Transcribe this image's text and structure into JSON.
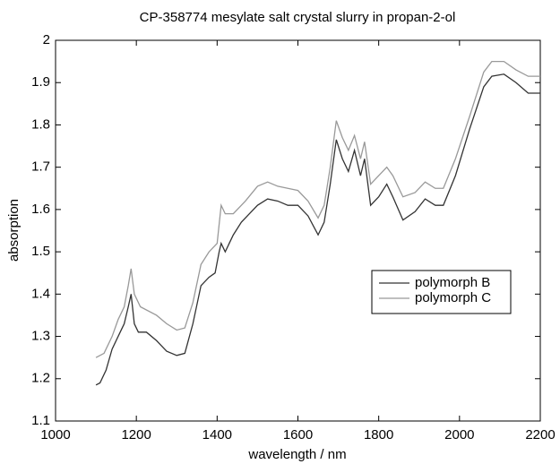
{
  "chart_data": {
    "type": "line",
    "title": "CP-358774 mesylate salt crystal slurry in propan-2-ol",
    "x_label": "wavelength / nm",
    "y_label": "absorption",
    "xlim": [
      1000,
      2200
    ],
    "xticks": [
      1000,
      1200,
      1400,
      1600,
      1800,
      2000,
      2200
    ],
    "ylim": [
      1.1,
      2
    ],
    "yticks": [
      1.1,
      1.2,
      1.3,
      1.4,
      1.5,
      1.6,
      1.7,
      1.8,
      1.9,
      2
    ],
    "series": [
      {
        "name": "polymorph B",
        "color": "#333333",
        "x": [
          1100,
          1110,
          1125,
          1140,
          1150,
          1160,
          1170,
          1180,
          1187,
          1195,
          1205,
          1225,
          1250,
          1275,
          1300,
          1320,
          1340,
          1360,
          1380,
          1395,
          1405,
          1410,
          1420,
          1440,
          1460,
          1480,
          1500,
          1525,
          1550,
          1575,
          1600,
          1625,
          1650,
          1665,
          1680,
          1695,
          1710,
          1725,
          1740,
          1755,
          1765,
          1780,
          1800,
          1820,
          1835,
          1860,
          1890,
          1915,
          1940,
          1960,
          1990,
          2025,
          2060,
          2080,
          2110,
          2140,
          2170,
          2200
        ],
        "values": [
          1.185,
          1.19,
          1.22,
          1.27,
          1.29,
          1.31,
          1.33,
          1.37,
          1.4,
          1.33,
          1.31,
          1.31,
          1.29,
          1.265,
          1.255,
          1.26,
          1.33,
          1.42,
          1.44,
          1.45,
          1.5,
          1.52,
          1.5,
          1.54,
          1.57,
          1.59,
          1.61,
          1.625,
          1.62,
          1.61,
          1.61,
          1.585,
          1.54,
          1.57,
          1.66,
          1.765,
          1.72,
          1.69,
          1.74,
          1.68,
          1.72,
          1.61,
          1.63,
          1.66,
          1.63,
          1.575,
          1.595,
          1.625,
          1.61,
          1.61,
          1.68,
          1.79,
          1.89,
          1.915,
          1.92,
          1.9,
          1.875,
          1.875
        ]
      },
      {
        "name": "polymorph C",
        "color": "#999999",
        "x": [
          1100,
          1120,
          1140,
          1155,
          1170,
          1180,
          1187,
          1195,
          1210,
          1250,
          1275,
          1300,
          1320,
          1340,
          1360,
          1380,
          1400,
          1410,
          1420,
          1440,
          1470,
          1500,
          1525,
          1550,
          1575,
          1600,
          1625,
          1650,
          1665,
          1680,
          1695,
          1710,
          1725,
          1740,
          1755,
          1765,
          1780,
          1800,
          1820,
          1835,
          1860,
          1890,
          1915,
          1940,
          1960,
          1990,
          2025,
          2060,
          2080,
          2110,
          2140,
          2170,
          2200
        ],
        "values": [
          1.25,
          1.26,
          1.3,
          1.34,
          1.37,
          1.42,
          1.46,
          1.4,
          1.37,
          1.35,
          1.33,
          1.315,
          1.32,
          1.38,
          1.47,
          1.5,
          1.52,
          1.61,
          1.59,
          1.59,
          1.62,
          1.655,
          1.665,
          1.655,
          1.65,
          1.645,
          1.62,
          1.58,
          1.61,
          1.7,
          1.81,
          1.77,
          1.74,
          1.775,
          1.72,
          1.76,
          1.66,
          1.68,
          1.7,
          1.68,
          1.63,
          1.64,
          1.665,
          1.65,
          1.65,
          1.72,
          1.82,
          1.925,
          1.95,
          1.95,
          1.93,
          1.915,
          1.915
        ]
      }
    ]
  }
}
